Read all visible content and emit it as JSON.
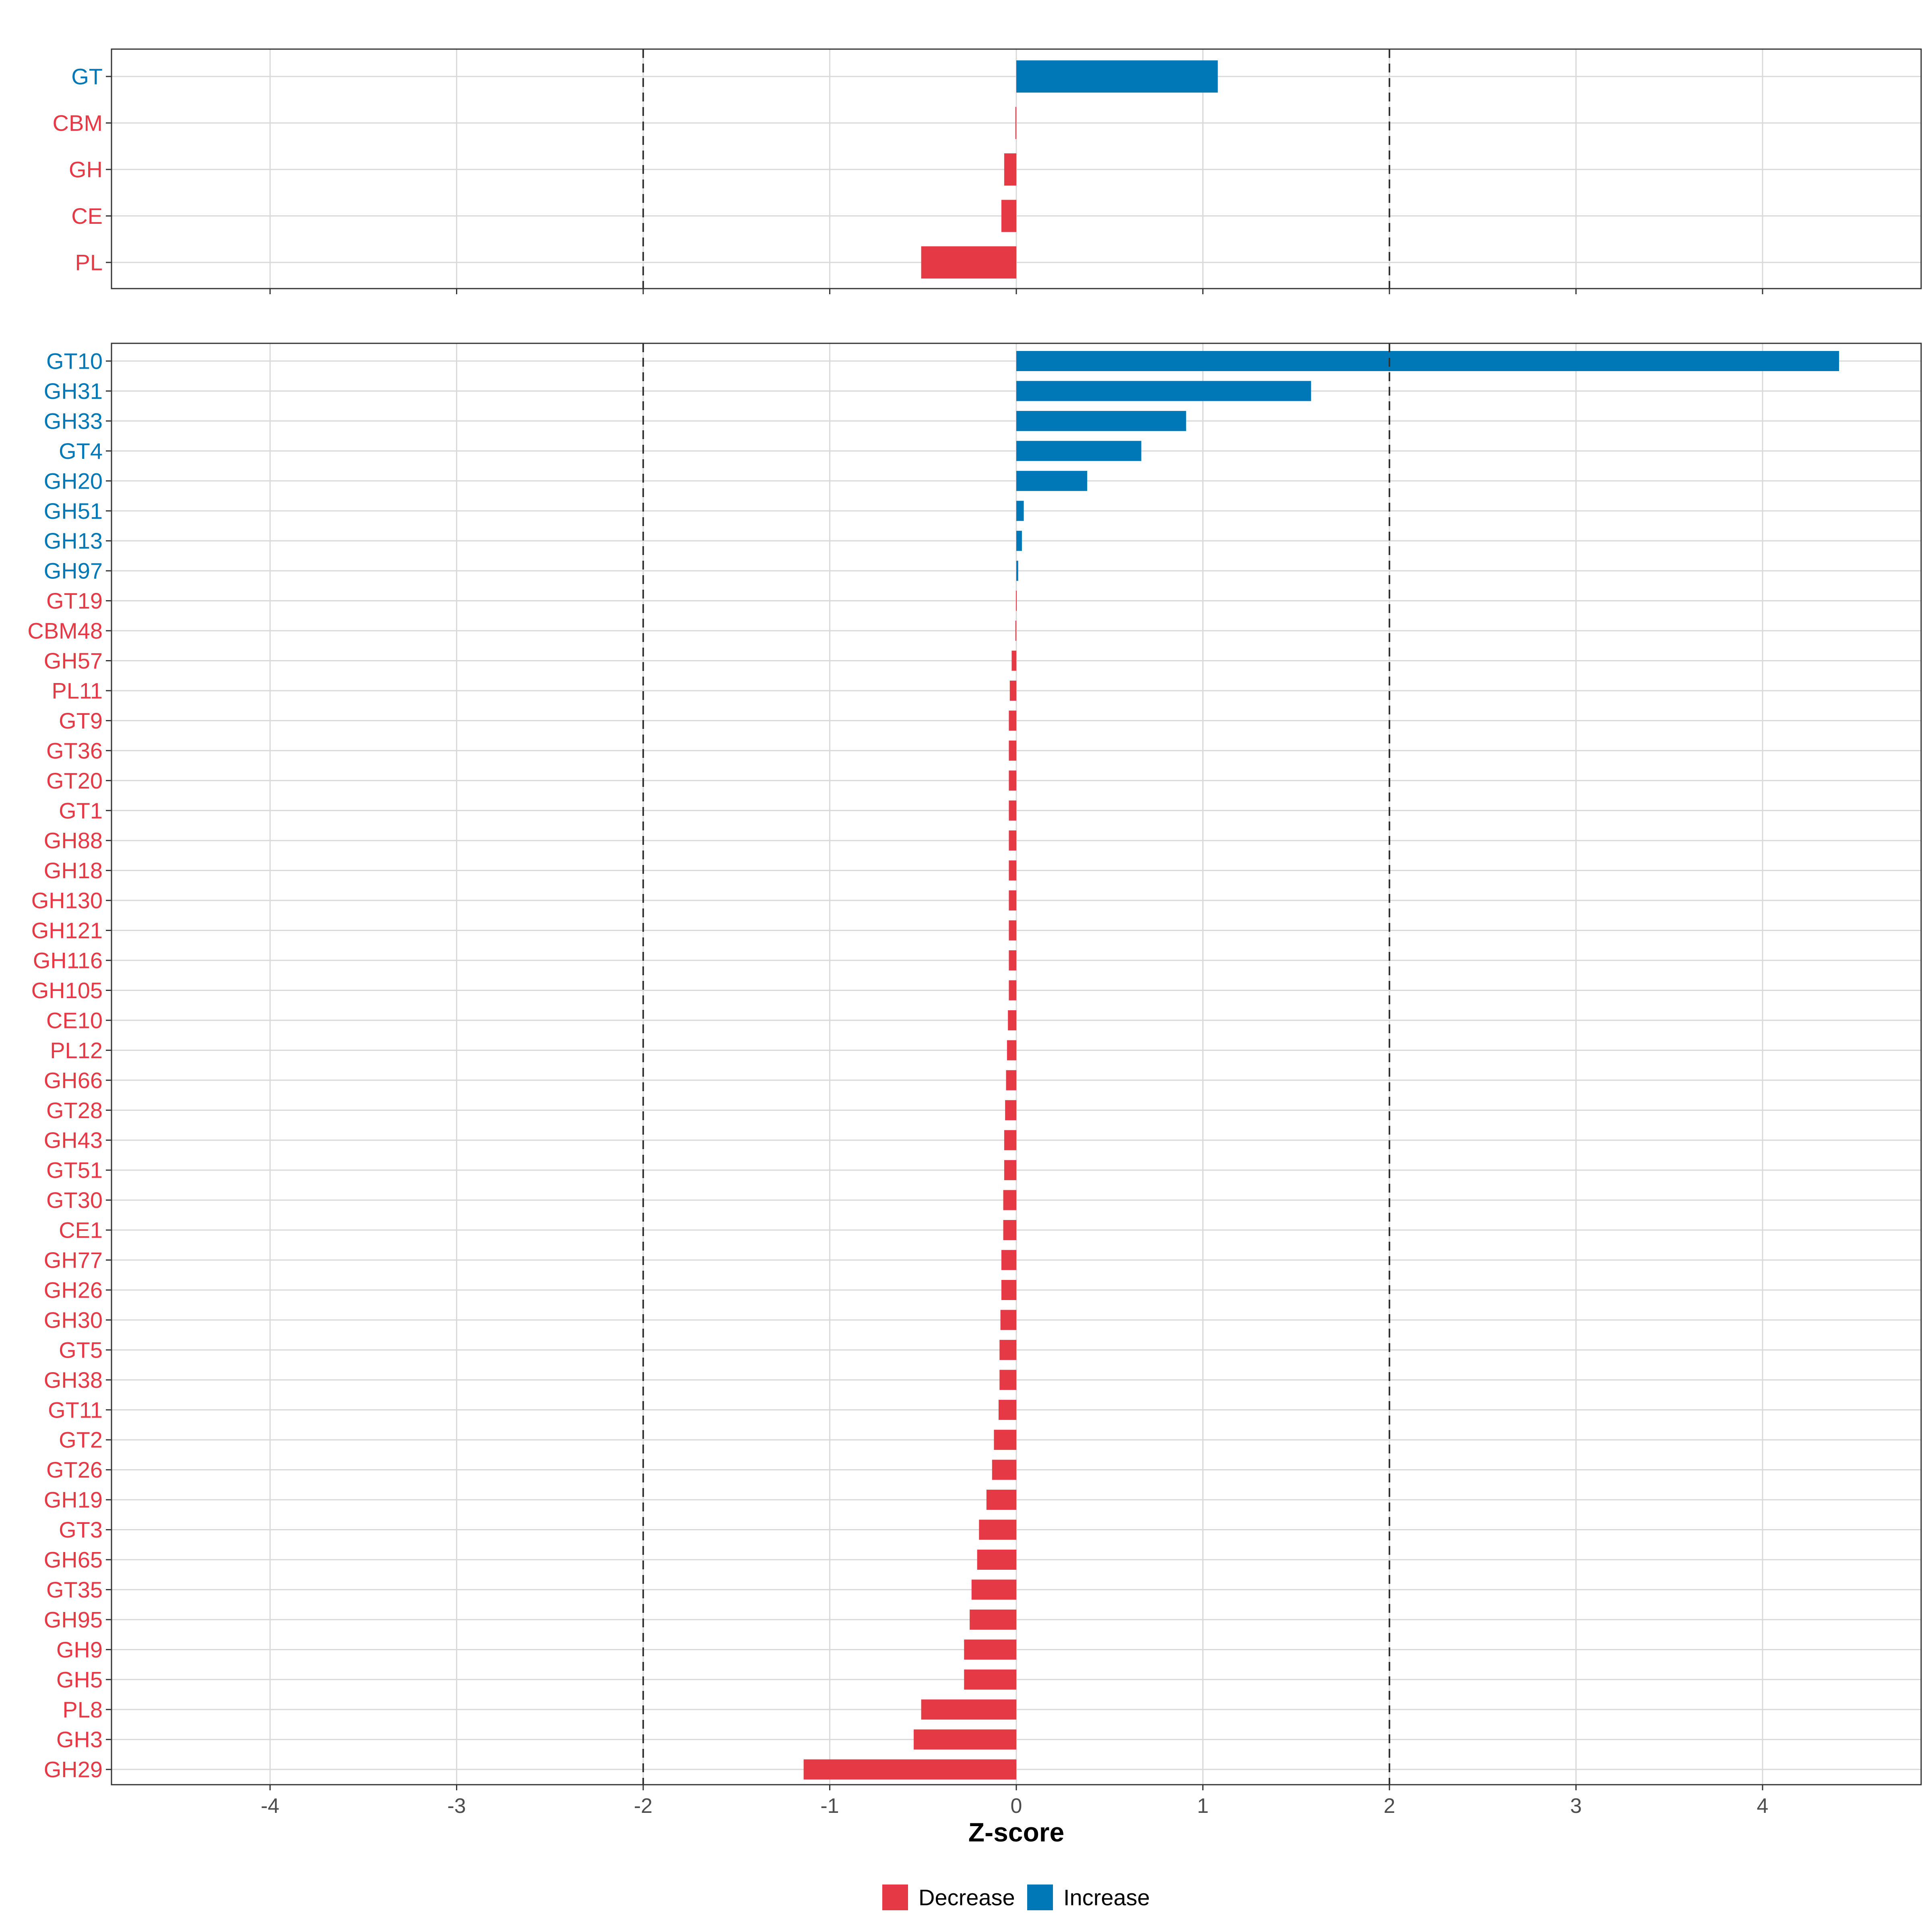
{
  "chart_data": {
    "type": "bar",
    "orientation": "horizontal",
    "xlabel": "Z-score",
    "xlim": [
      -4.85,
      4.85
    ],
    "xticks": [
      -4,
      -3,
      -2,
      -1,
      0,
      1,
      2,
      3,
      4
    ],
    "xtick_labels": [
      "-4",
      "-3",
      "-2",
      "-1",
      "0",
      "1",
      "2",
      "3",
      "4"
    ],
    "reference_lines": [
      -2,
      2
    ],
    "grid": true,
    "legend": {
      "position": "bottom",
      "entries": [
        {
          "label": "Decrease",
          "key": "Decrease",
          "color": "#E63946"
        },
        {
          "label": "Increase",
          "key": "Increase",
          "color": "#0077B6"
        }
      ]
    },
    "panels": [
      {
        "name": "families",
        "categories": [
          "GT",
          "CBM",
          "GH",
          "CE",
          "PL"
        ],
        "values": [
          1.08,
          -0.005,
          -0.065,
          -0.08,
          -0.51
        ]
      },
      {
        "name": "subfamilies",
        "categories": [
          "GT10",
          "GH31",
          "GH33",
          "GT4",
          "GH20",
          "GH51",
          "GH13",
          "GH97",
          "GT19",
          "CBM48",
          "GH57",
          "PL11",
          "GT9",
          "GT36",
          "GT20",
          "GT1",
          "GH88",
          "GH18",
          "GH130",
          "GH121",
          "GH116",
          "GH105",
          "CE10",
          "PL12",
          "GH66",
          "GT28",
          "GH43",
          "GT51",
          "GT30",
          "CE1",
          "GH77",
          "GH26",
          "GH30",
          "GT5",
          "GH38",
          "GT11",
          "GT2",
          "GT26",
          "GH19",
          "GT3",
          "GH65",
          "GT35",
          "GH95",
          "GH9",
          "GH5",
          "PL8",
          "GH3",
          "GH29"
        ],
        "values": [
          4.41,
          1.58,
          0.91,
          0.67,
          0.38,
          0.04,
          0.03,
          0.01,
          -0.002,
          -0.005,
          -0.025,
          -0.035,
          -0.04,
          -0.04,
          -0.04,
          -0.04,
          -0.04,
          -0.04,
          -0.04,
          -0.04,
          -0.04,
          -0.04,
          -0.045,
          -0.05,
          -0.055,
          -0.06,
          -0.065,
          -0.065,
          -0.07,
          -0.07,
          -0.08,
          -0.08,
          -0.085,
          -0.09,
          -0.09,
          -0.095,
          -0.12,
          -0.13,
          -0.16,
          -0.2,
          -0.21,
          -0.24,
          -0.25,
          -0.28,
          -0.28,
          -0.51,
          -0.55,
          -1.14
        ]
      }
    ]
  }
}
